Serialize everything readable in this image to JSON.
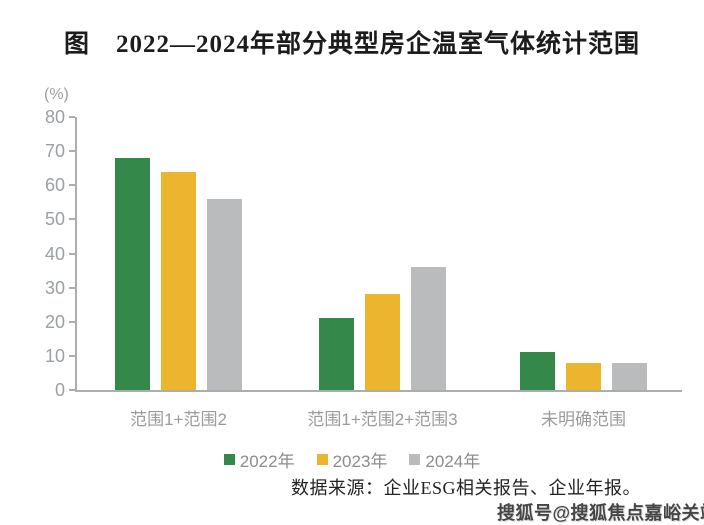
{
  "title": "图　2022—2024年部分典型房企温室气体统计范围",
  "chart_data": {
    "type": "bar",
    "title": "图　2022—2024年部分典型房企温室气体统计范围",
    "unit_label": "(%)",
    "categories": [
      "范围1+范围2",
      "范围1+范围2+范围3",
      "未明确范围"
    ],
    "series": [
      {
        "name": "2022年",
        "color": "#33884a",
        "values": [
          68,
          21,
          11
        ]
      },
      {
        "name": "2023年",
        "color": "#ecb52e",
        "values": [
          64,
          28,
          8
        ]
      },
      {
        "name": "2024年",
        "color": "#b9bbbd",
        "values": [
          56,
          36,
          8
        ]
      }
    ],
    "ylim": [
      0,
      80
    ],
    "yticks": [
      0,
      10,
      20,
      30,
      40,
      50,
      60,
      70,
      80
    ],
    "grid": false,
    "legend_position": "bottom",
    "axis_color": "#aaaeb0",
    "tick_label_color": "#9aa0a3",
    "category_label_color": "#9b9b9b",
    "legend_text_color": "#8c8c8c"
  },
  "source_note": "数据来源：企业ESG相关报告、企业年报。",
  "watermark": "搜狐号@搜狐焦点嘉峪关站"
}
